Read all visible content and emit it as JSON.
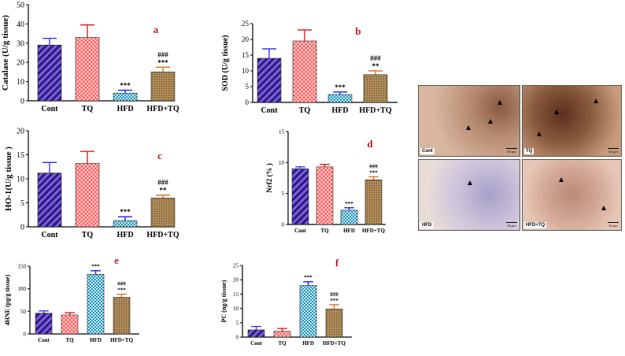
{
  "colors": {
    "cont": "#6a4cc2",
    "tq": "#ff4d4d",
    "hfd": "#63c7e0",
    "hfdtq": "#b08c5a",
    "letter": "#c0181c",
    "error": {
      "cont": "#3a3adf",
      "tq": "#e02020",
      "hfd": "#1a1aff",
      "hfdtq": "#e07020"
    }
  },
  "chart_data": [
    {
      "id": "a",
      "type": "bar",
      "letter": "a",
      "ylabel": "Catalase (U/g tissue)",
      "ylim": [
        0,
        50
      ],
      "yticks": [
        "0",
        "10",
        "20",
        "30",
        "40",
        "50"
      ],
      "categories": [
        "Cont",
        "TQ",
        "HFD",
        "HFD+TQ"
      ],
      "values": [
        29,
        33,
        4,
        15
      ],
      "errors": [
        3.5,
        6.5,
        1.5,
        2.5
      ],
      "marks": [
        [
          "",
          ""
        ],
        [
          "",
          ""
        ],
        [
          "***",
          ""
        ],
        [
          "***",
          "###"
        ]
      ]
    },
    {
      "id": "b",
      "type": "bar",
      "letter": "b",
      "ylabel": "SOD (U/g tissue)",
      "ylim": [
        0,
        25
      ],
      "yticks": [
        "0",
        "5",
        "10",
        "15",
        "20",
        "25"
      ],
      "categories": [
        "Cont",
        "TQ",
        "HFD",
        "HFD+TQ"
      ],
      "values": [
        14,
        19.5,
        2.5,
        8.8
      ],
      "errors": [
        3,
        3.5,
        0.8,
        1.2
      ],
      "marks": [
        [
          "",
          ""
        ],
        [
          "",
          ""
        ],
        [
          "***",
          ""
        ],
        [
          "**",
          "###"
        ]
      ]
    },
    {
      "id": "c",
      "type": "bar",
      "letter": "c",
      "ylabel": "HO-1(U/g tissue )",
      "ylim": [
        0,
        20
      ],
      "yticks": [
        "0",
        "5",
        "10",
        "15",
        "20"
      ],
      "categories": [
        "Cont",
        "TQ",
        "HFD",
        "HFD+TQ"
      ],
      "values": [
        11.2,
        13.2,
        1.3,
        6
      ],
      "errors": [
        2.2,
        2.5,
        0.8,
        0.6
      ],
      "marks": [
        [
          "",
          ""
        ],
        [
          "",
          ""
        ],
        [
          "***",
          ""
        ],
        [
          "**",
          "###"
        ]
      ]
    },
    {
      "id": "d",
      "type": "bar",
      "letter": "d",
      "ylabel": "Nrf2 (% )",
      "ylim": [
        0,
        15
      ],
      "yticks": [
        "0",
        "5",
        "10",
        "15"
      ],
      "categories": [
        "Cont",
        "TQ",
        "HFD",
        "HFD+TQ"
      ],
      "values": [
        9,
        9.3,
        2.3,
        7.2
      ],
      "errors": [
        0.3,
        0.4,
        0.4,
        0.5
      ],
      "marks": [
        [
          "",
          ""
        ],
        [
          "",
          ""
        ],
        [
          "***",
          ""
        ],
        [
          "***",
          "###"
        ]
      ]
    },
    {
      "id": "e",
      "type": "bar",
      "letter": "e",
      "ylabel": "4HNE (pg/g tissue)",
      "ylim": [
        0,
        150
      ],
      "yticks": [
        "0",
        "50",
        "100",
        "150"
      ],
      "categories": [
        "Cont",
        "TQ",
        "HFD",
        "HFD+TQ"
      ],
      "values": [
        46,
        42,
        132,
        81
      ],
      "errors": [
        5,
        5,
        8,
        7
      ],
      "marks": [
        [
          "",
          ""
        ],
        [
          "",
          ""
        ],
        [
          "***",
          ""
        ],
        [
          "***",
          "###"
        ]
      ]
    },
    {
      "id": "f",
      "type": "bar",
      "letter": "f",
      "ylabel": "PC (ng/g tissue)",
      "ylim": [
        0,
        25
      ],
      "yticks": [
        "0",
        "5",
        "10",
        "15",
        "20",
        "25"
      ],
      "categories": [
        "Cont",
        "TQ",
        "HFD",
        "HFD+TQ"
      ],
      "values": [
        2.5,
        2,
        18,
        9.8
      ],
      "errors": [
        1.2,
        1,
        1.3,
        1.5
      ],
      "marks": [
        [
          "",
          ""
        ],
        [
          "",
          ""
        ],
        [
          "***",
          ""
        ],
        [
          "***",
          "###"
        ]
      ]
    }
  ],
  "micrographs": {
    "panels": [
      {
        "label": "Cont",
        "scale": "50 μm"
      },
      {
        "label": "TQ",
        "scale": "50 μm"
      },
      {
        "label": "HFD",
        "scale": "50 μm"
      },
      {
        "label": "HFD+TQ",
        "scale": "50 μm"
      }
    ]
  }
}
